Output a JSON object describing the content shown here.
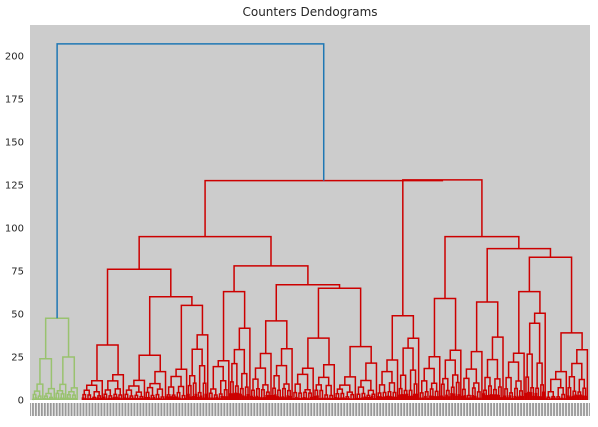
{
  "chart_data": {
    "type": "dendrogram",
    "title": "Counters Dendograms",
    "xlabel": "",
    "ylabel": "",
    "ylim": [
      0,
      218
    ],
    "y_ticks": [
      0,
      25,
      50,
      75,
      100,
      125,
      150,
      175,
      200
    ],
    "grid": false,
    "background_color": "#cccccc",
    "colors": {
      "top": "#1f77b4",
      "green_cluster": "#99c26f",
      "red_cluster": "#cc0000"
    },
    "root_height": 207,
    "clusters": [
      {
        "name": "green_cluster",
        "merge_height": 47.5,
        "leaf_count": 40,
        "children": [
          {
            "height": 24,
            "children": [
              {
                "height": 14
              },
              {
                "height": 10
              }
            ]
          },
          {
            "height": 25,
            "children": [
              {
                "height": 16
              },
              {
                "height": 12
              }
            ]
          }
        ]
      },
      {
        "name": "red_cluster",
        "merge_height": 127.5,
        "leaf_count": 410,
        "children": [
          {
            "height": 95,
            "children": [
              {
                "height": 76,
                "children": [
                  {
                    "height": 32,
                    "children": [
                      {
                        "height": 14
                      },
                      {
                        "height": 18
                      }
                    ]
                  },
                  {
                    "height": 60,
                    "children": [
                      {
                        "height": 26,
                        "children": [
                          {
                            "height": 13
                          },
                          {
                            "height": 17
                          }
                        ]
                      },
                      {
                        "height": 55,
                        "children": [
                          {
                            "height": 21
                          },
                          {
                            "height": 39
                          }
                        ]
                      }
                    ]
                  }
                ]
              },
              {
                "height": 78,
                "children": [
                  {
                    "height": 63,
                    "children": [
                      {
                        "height": 25
                      },
                      {
                        "height": 43
                      }
                    ]
                  },
                  {
                    "height": 67,
                    "children": [
                      {
                        "height": 46,
                        "children": [
                          {
                            "height": 28
                          },
                          {
                            "height": 33
                          }
                        ]
                      },
                      {
                        "height": 65,
                        "children": [
                          {
                            "height": 36,
                            "children": [
                              {
                                "height": 19
                              },
                              {
                                "height": 27
                              }
                            ]
                          },
                          {
                            "height": 31,
                            "children": [
                              {
                                "height": 15
                              },
                              {
                                "height": 24
                              }
                            ]
                          }
                        ]
                      }
                    ]
                  }
                ]
              }
            ]
          },
          {
            "height": 128,
            "children": [
              {
                "height": 49,
                "children": [
                  {
                    "height": 24
                  },
                  {
                    "height": 37
                  }
                ]
              },
              {
                "height": 95,
                "children": [
                  {
                    "height": 59,
                    "children": [
                      {
                        "height": 26
                      },
                      {
                        "height": 43
                      }
                    ]
                  },
                  {
                    "height": 88,
                    "children": [
                      {
                        "height": 57,
                        "children": [
                          {
                            "height": 29
                          },
                          {
                            "height": 40
                          }
                        ]
                      },
                      {
                        "height": 83,
                        "children": [
                          {
                            "height": 63,
                            "children": [
                              {
                                "height": 28
                              },
                              {
                                "height": 52
                              }
                            ]
                          },
                          {
                            "height": 39,
                            "children": [
                              {
                                "height": 17
                              },
                              {
                                "height": 32
                              }
                            ]
                          }
                        ]
                      }
                    ]
                  }
                ]
              }
            ]
          }
        ]
      }
    ]
  }
}
